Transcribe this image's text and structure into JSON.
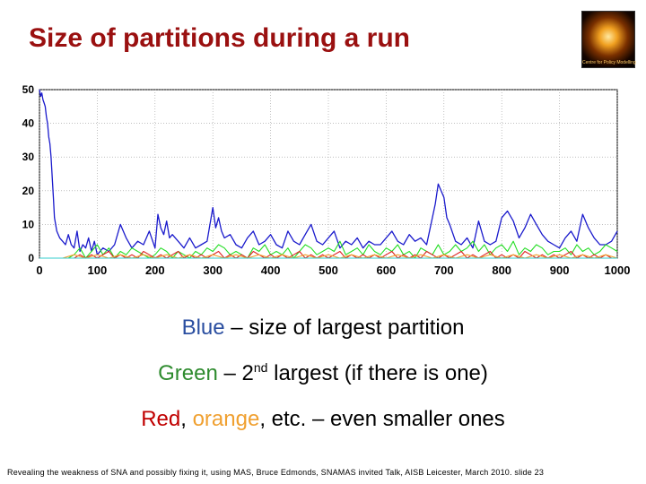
{
  "slide": {
    "title": "Size of partitions during a run",
    "logo_text": "Centre for Policy Modelling",
    "legend": {
      "line1": {
        "color_word": "Blue",
        "rest": " – size of largest partition"
      },
      "line2": {
        "color_word": "Green",
        "mid": " – 2",
        "sup": "nd",
        "rest": " largest (if there is one)"
      },
      "line3": {
        "red_word": "Red",
        "sep": ", ",
        "orange_word": "orange",
        "rest": ", etc. – even smaller ones"
      }
    },
    "footer": "Revealing the weakness of SNA and possibly fixing it, using MAS, Bruce Edmonds, SNAMAS invited Talk, AISB Leicester, March 2010. slide 23"
  },
  "chart_data": {
    "type": "line",
    "title": "",
    "xlabel": "",
    "ylabel": "",
    "xlim": [
      0,
      1000
    ],
    "ylim": [
      0,
      50
    ],
    "xticks": [
      0,
      100,
      200,
      300,
      400,
      500,
      600,
      700,
      800,
      900,
      1000
    ],
    "yticks": [
      0,
      10,
      20,
      30,
      40,
      50
    ],
    "grid": true,
    "colors": {
      "blue": "#1a1acc",
      "green": "#22dd22",
      "red": "#dd2222",
      "orange": "#f0a030",
      "cyan": "#33cccc"
    },
    "series": [
      {
        "color": "blue",
        "x": [
          0,
          2,
          4,
          6,
          8,
          10,
          12,
          14,
          16,
          18,
          20,
          22,
          24,
          26,
          28,
          30,
          35,
          40,
          45,
          50,
          55,
          60,
          65,
          70,
          75,
          80,
          85,
          90,
          95,
          100,
          110,
          120,
          130,
          140,
          150,
          160,
          170,
          180,
          190,
          200,
          205,
          210,
          215,
          220,
          225,
          230,
          240,
          250,
          260,
          270,
          280,
          290,
          300,
          305,
          310,
          315,
          320,
          330,
          340,
          350,
          360,
          370,
          380,
          390,
          400,
          410,
          420,
          430,
          440,
          450,
          460,
          470,
          480,
          490,
          500,
          510,
          520,
          530,
          540,
          550,
          560,
          570,
          580,
          590,
          600,
          610,
          620,
          630,
          640,
          650,
          660,
          670,
          680,
          685,
          690,
          695,
          700,
          705,
          710,
          720,
          730,
          740,
          750,
          760,
          770,
          780,
          790,
          800,
          810,
          820,
          830,
          840,
          850,
          860,
          870,
          880,
          890,
          900,
          910,
          920,
          930,
          940,
          950,
          960,
          970,
          980,
          990,
          1000
        ],
        "y": [
          50,
          48,
          49,
          47,
          46,
          45,
          42,
          40,
          36,
          34,
          30,
          24,
          18,
          12,
          10,
          8,
          6,
          5,
          4,
          7,
          4,
          3,
          8,
          2,
          4,
          3,
          6,
          2,
          5,
          1,
          3,
          2,
          4,
          10,
          6,
          3,
          5,
          4,
          8,
          3,
          13,
          9,
          7,
          11,
          6,
          7,
          5,
          3,
          6,
          3,
          4,
          5,
          15,
          9,
          12,
          8,
          6,
          7,
          4,
          3,
          6,
          8,
          4,
          5,
          7,
          4,
          3,
          8,
          5,
          4,
          7,
          10,
          5,
          4,
          6,
          8,
          3,
          5,
          4,
          6,
          3,
          5,
          4,
          4,
          6,
          8,
          5,
          4,
          7,
          5,
          6,
          4,
          12,
          16,
          22,
          20,
          18,
          12,
          10,
          5,
          4,
          6,
          3,
          11,
          5,
          4,
          5,
          12,
          14,
          11,
          6,
          9,
          13,
          10,
          7,
          5,
          4,
          3,
          6,
          8,
          5,
          13,
          9,
          6,
          4,
          4,
          5,
          8
        ]
      },
      {
        "color": "green",
        "x": [
          0,
          10,
          20,
          30,
          40,
          50,
          60,
          70,
          80,
          90,
          100,
          110,
          120,
          130,
          140,
          150,
          160,
          170,
          180,
          190,
          200,
          210,
          220,
          230,
          240,
          250,
          260,
          270,
          280,
          290,
          300,
          310,
          320,
          330,
          340,
          350,
          360,
          370,
          380,
          390,
          400,
          410,
          420,
          430,
          440,
          450,
          460,
          470,
          480,
          490,
          500,
          510,
          520,
          530,
          540,
          550,
          560,
          570,
          580,
          590,
          600,
          610,
          620,
          630,
          640,
          650,
          660,
          670,
          680,
          690,
          700,
          710,
          720,
          730,
          740,
          750,
          760,
          770,
          780,
          790,
          800,
          810,
          820,
          830,
          840,
          850,
          860,
          870,
          880,
          890,
          900,
          910,
          920,
          930,
          940,
          950,
          960,
          970,
          980,
          990,
          1000
        ],
        "y": [
          0,
          0,
          0,
          0,
          0,
          0,
          1,
          3,
          0,
          2,
          4,
          1,
          3,
          0,
          2,
          1,
          3,
          2,
          1,
          0,
          1,
          3,
          2,
          0,
          2,
          1,
          0,
          2,
          1,
          3,
          2,
          4,
          3,
          1,
          2,
          1,
          0,
          3,
          2,
          4,
          1,
          2,
          1,
          3,
          0,
          2,
          4,
          3,
          1,
          2,
          3,
          2,
          5,
          1,
          2,
          3,
          1,
          4,
          2,
          1,
          3,
          2,
          4,
          1,
          2,
          0,
          3,
          2,
          1,
          4,
          1,
          2,
          4,
          2,
          3,
          5,
          2,
          4,
          1,
          3,
          4,
          2,
          5,
          1,
          3,
          2,
          4,
          3,
          1,
          2,
          2,
          3,
          1,
          4,
          2,
          3,
          1,
          2,
          4,
          3,
          2
        ]
      },
      {
        "color": "red",
        "x": [
          0,
          10,
          20,
          30,
          40,
          50,
          60,
          70,
          80,
          90,
          100,
          110,
          120,
          130,
          140,
          150,
          160,
          170,
          180,
          190,
          200,
          210,
          220,
          230,
          240,
          250,
          260,
          270,
          280,
          290,
          300,
          310,
          320,
          330,
          340,
          350,
          360,
          370,
          380,
          390,
          400,
          410,
          420,
          430,
          440,
          450,
          460,
          470,
          480,
          490,
          500,
          510,
          520,
          530,
          540,
          550,
          560,
          570,
          580,
          590,
          600,
          610,
          620,
          630,
          640,
          650,
          660,
          670,
          680,
          690,
          700,
          710,
          720,
          730,
          740,
          750,
          760,
          770,
          780,
          790,
          800,
          810,
          820,
          830,
          840,
          850,
          860,
          870,
          880,
          890,
          900,
          910,
          920,
          930,
          940,
          950,
          960,
          970,
          980,
          990,
          1000
        ],
        "y": [
          0,
          0,
          0,
          0,
          0,
          0,
          0,
          1,
          0,
          1,
          0,
          1,
          2,
          0,
          1,
          0,
          1,
          0,
          2,
          1,
          0,
          1,
          0,
          1,
          2,
          0,
          1,
          0,
          1,
          0,
          1,
          2,
          0,
          1,
          0,
          1,
          0,
          2,
          1,
          0,
          1,
          0,
          1,
          0,
          1,
          2,
          0,
          1,
          0,
          1,
          0,
          1,
          2,
          0,
          1,
          0,
          1,
          0,
          1,
          0,
          1,
          2,
          0,
          1,
          0,
          1,
          0,
          2,
          1,
          0,
          1,
          0,
          1,
          2,
          0,
          1,
          0,
          1,
          2,
          0,
          1,
          0,
          1,
          0,
          2,
          1,
          0,
          1,
          0,
          1,
          0,
          1,
          2,
          0,
          1,
          0,
          1,
          0,
          1,
          0,
          0
        ]
      },
      {
        "color": "orange",
        "x": [
          0,
          20,
          40,
          60,
          80,
          100,
          120,
          140,
          160,
          180,
          200,
          220,
          240,
          260,
          280,
          300,
          320,
          340,
          360,
          380,
          400,
          420,
          440,
          460,
          480,
          500,
          520,
          540,
          560,
          580,
          600,
          620,
          640,
          660,
          680,
          700,
          720,
          740,
          760,
          780,
          800,
          820,
          840,
          860,
          880,
          900,
          920,
          940,
          960,
          980,
          1000
        ],
        "y": [
          0,
          0,
          0,
          1,
          0,
          1,
          0,
          1,
          0,
          1,
          0,
          1,
          0,
          1,
          0,
          1,
          0,
          1,
          0,
          1,
          0,
          1,
          0,
          1,
          0,
          1,
          0,
          1,
          0,
          1,
          0,
          1,
          0,
          1,
          0,
          1,
          0,
          1,
          0,
          1,
          0,
          1,
          0,
          1,
          0,
          1,
          0,
          1,
          0,
          1,
          0
        ]
      },
      {
        "color": "cyan",
        "x": [
          0,
          1000
        ],
        "y": [
          0,
          0
        ]
      }
    ]
  }
}
